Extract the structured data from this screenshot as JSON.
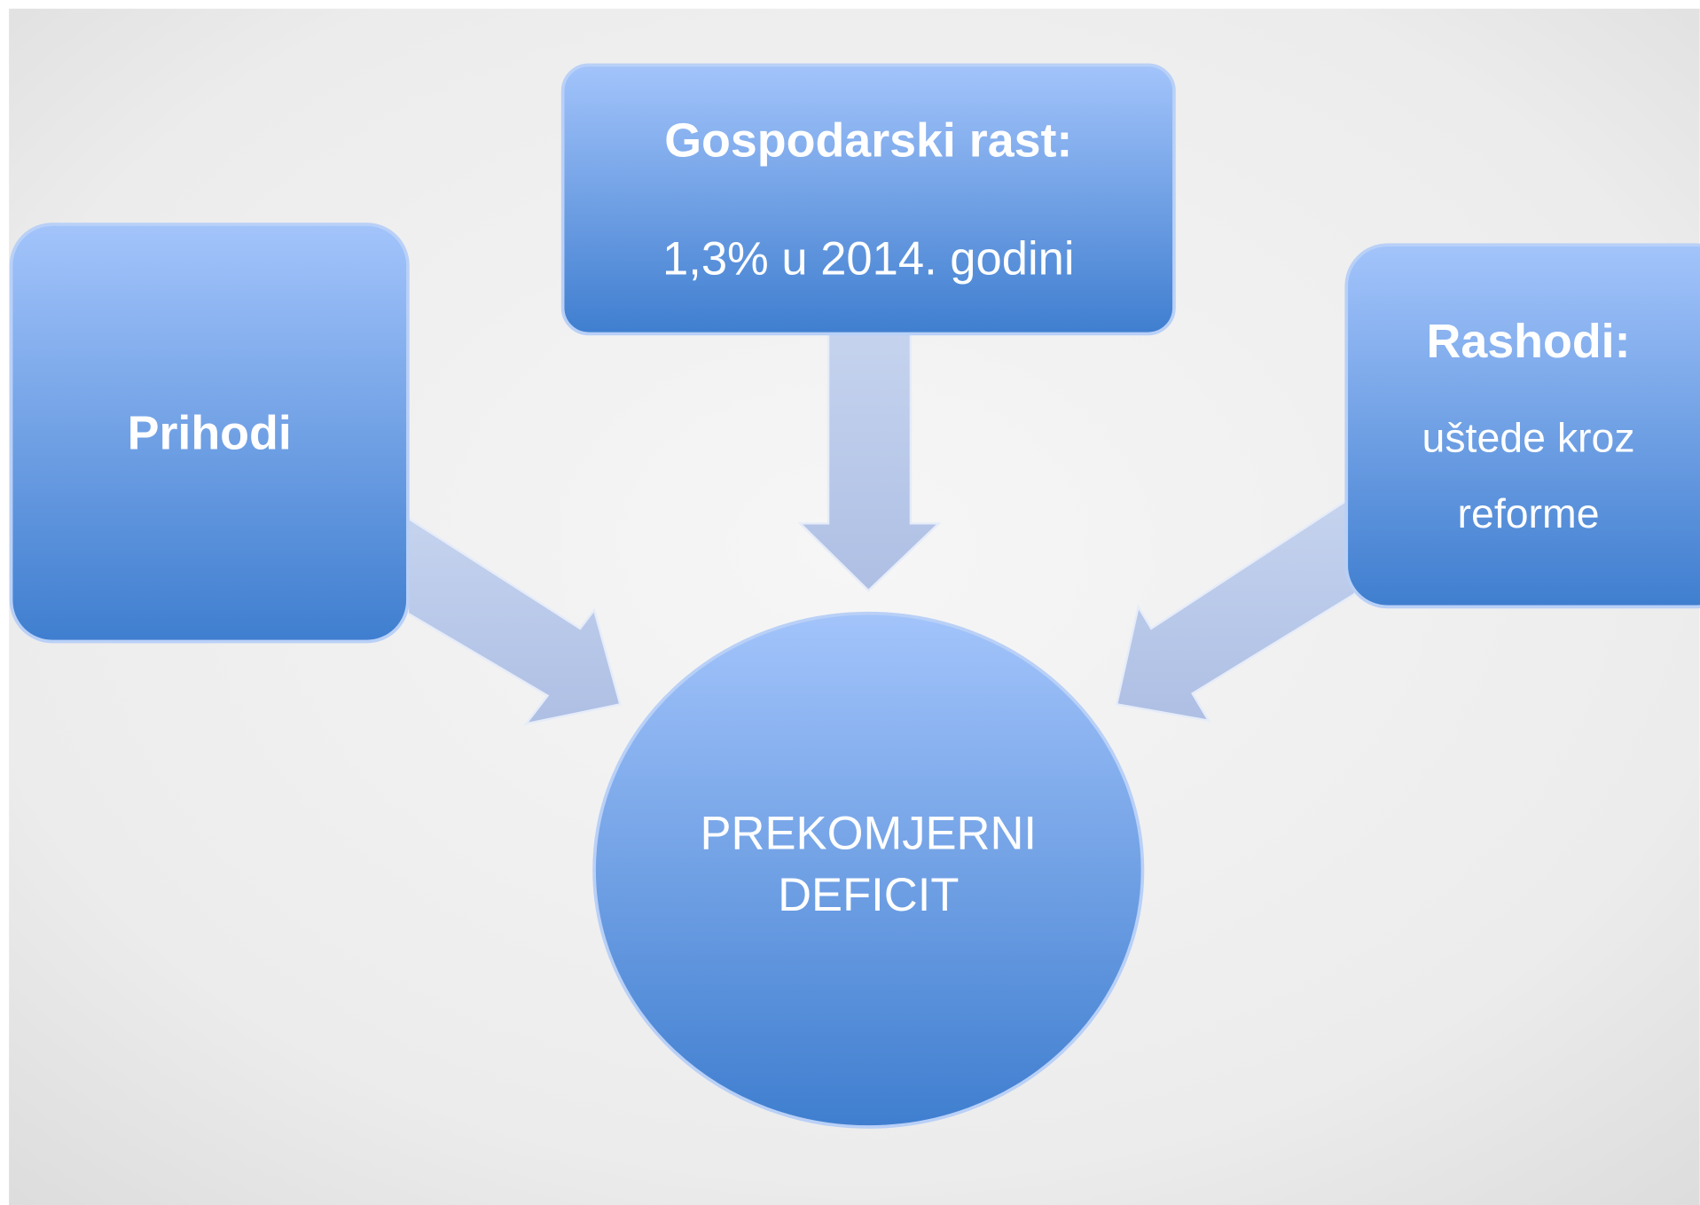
{
  "nodes": [
    {
      "title": "Prihodi"
    },
    {
      "title": "Gospodarski rast:",
      "text": "1,3% u 2014. godini"
    },
    {
      "title": "Rashodi:",
      "lines": [
        "uštede kroz",
        "reforme"
      ]
    },
    {
      "lines": [
        "PREKOMJERNI",
        "DEFICIT"
      ]
    }
  ]
}
